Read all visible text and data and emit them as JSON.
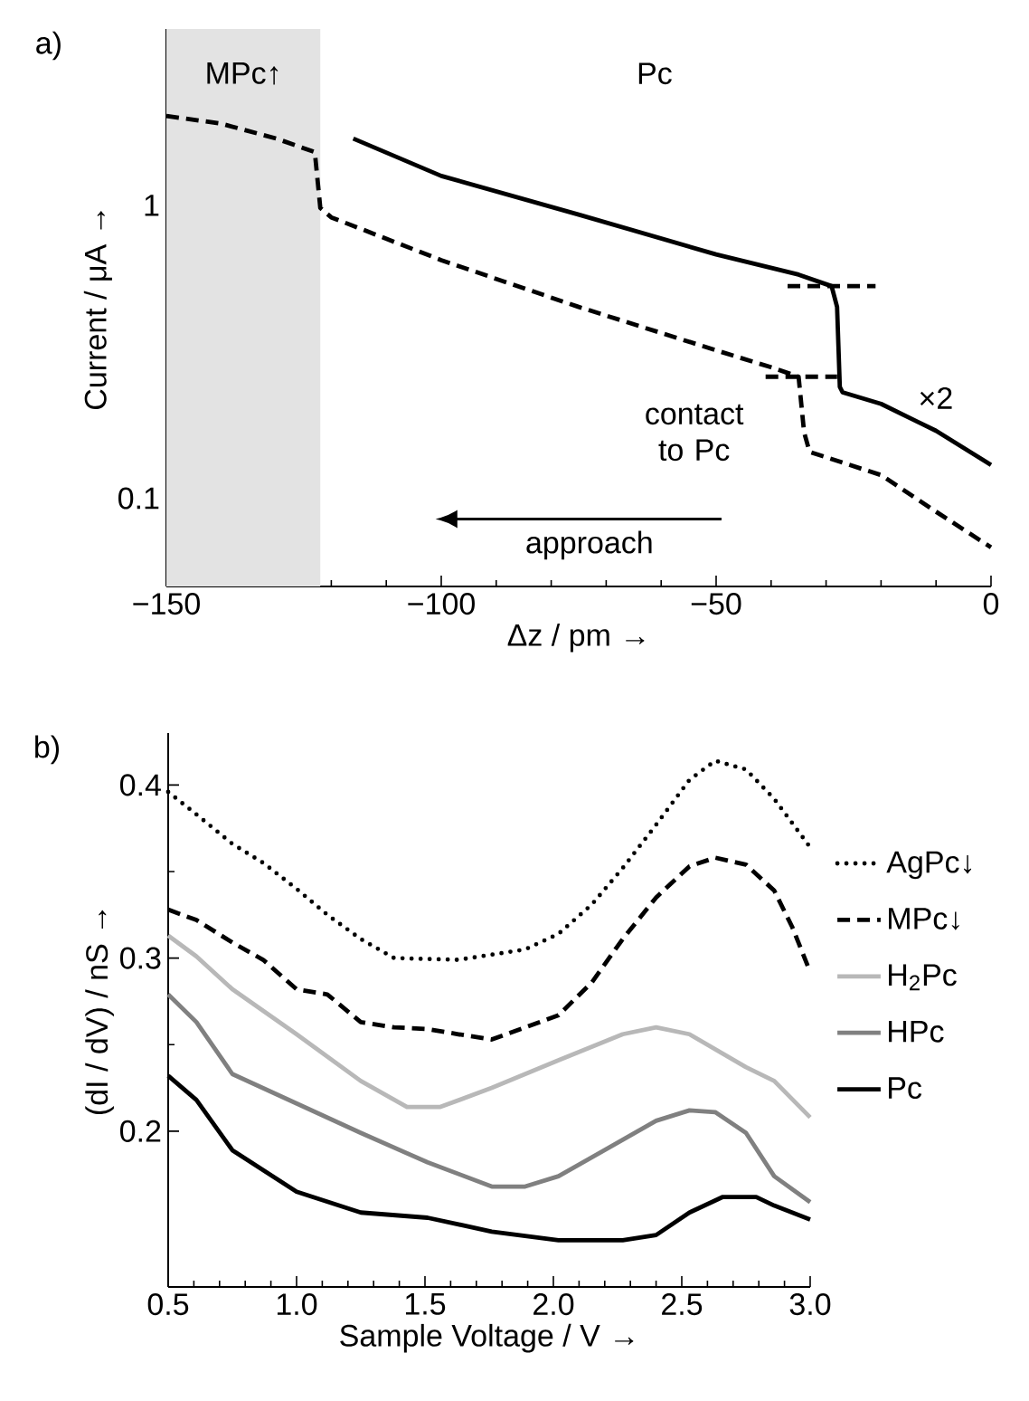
{
  "chart_data": [
    {
      "type": "line",
      "title": "a)",
      "xlabel": "Δz / pm →",
      "ylabel": "Current / μA →",
      "log": "y",
      "xlim": [
        -150,
        0
      ],
      "ylim": [
        0.05,
        4
      ],
      "xticks": [
        {
          "value": -150,
          "label": "−150"
        },
        {
          "value": -100,
          "label": "−100"
        },
        {
          "value": -50,
          "label": "−50"
        },
        0
      ],
      "yticks": [
        0.1,
        1
      ],
      "bands": [
        {
          "axis": "x",
          "from": -150,
          "to": -122,
          "label": "MPc↑",
          "color": "#e3e3e3"
        }
      ],
      "series": [
        {
          "color": "#000000",
          "line_style": "dashed",
          "x": [
            -150,
            -140,
            -130,
            -123,
            -122,
            -120,
            -100,
            -75,
            -50,
            -40,
            -35,
            -34,
            -33,
            -20,
            -10,
            0
          ],
          "values": [
            2.02,
            1.9,
            1.69,
            1.52,
            0.98,
            0.91,
            0.65,
            0.45,
            0.32,
            0.28,
            0.26,
            0.168,
            0.144,
            0.12,
            0.09,
            0.068
          ]
        },
        {
          "color": "#000000",
          "line_style": "solid",
          "x": [
            -116,
            -100,
            -75,
            -50,
            -35,
            -29,
            -28,
            -27.5,
            -27,
            -20,
            -10,
            0
          ],
          "values": [
            1.69,
            1.26,
            0.93,
            0.68,
            0.58,
            0.53,
            0.45,
            0.24,
            0.23,
            0.21,
            0.17,
            0.13
          ]
        },
        {
          "color": "#000000",
          "line_style": "dashed",
          "x": [
            -37,
            -21
          ],
          "values": [
            0.53,
            0.53
          ]
        },
        {
          "color": "#000000",
          "line_style": "dashed",
          "x": [
            -41,
            -28
          ],
          "values": [
            0.26,
            0.26
          ]
        }
      ],
      "annotations": [
        "Pc",
        "approach",
        "contact to Pc",
        "×2"
      ]
    },
    {
      "type": "line",
      "title": "b)",
      "xlabel": "Sample Voltage / V →",
      "ylabel": "(dI / dV) / nS →",
      "xlim": [
        0.5,
        3.0
      ],
      "ylim": [
        0.11,
        0.43
      ],
      "xticks": [
        0.5,
        {
          "value": 1,
          "label": "1.0"
        },
        1.5,
        {
          "value": 2,
          "label": "2.0"
        },
        2.5,
        {
          "value": 3,
          "label": "3.0"
        }
      ],
      "yticks": [
        0.2,
        0.3,
        0.4
      ],
      "legend": "right",
      "series": [
        {
          "name": "AgPc↓",
          "color": "#000000",
          "line_style": "dotted",
          "x": [
            0.5,
            0.61,
            0.75,
            0.87,
            1.0,
            1.12,
            1.25,
            1.38,
            1.63,
            1.89,
            2.02,
            2.15,
            2.27,
            2.4,
            2.53,
            2.63,
            2.75,
            2.86,
            3.0
          ],
          "values": [
            0.396,
            0.383,
            0.366,
            0.355,
            0.34,
            0.325,
            0.311,
            0.3,
            0.299,
            0.305,
            0.314,
            0.331,
            0.352,
            0.377,
            0.403,
            0.414,
            0.409,
            0.392,
            0.364
          ]
        },
        {
          "name": "MPc↓",
          "color": "#000000",
          "line_style": "dashed",
          "x": [
            0.5,
            0.61,
            0.75,
            0.87,
            1.0,
            1.12,
            1.25,
            1.38,
            1.51,
            1.63,
            1.76,
            1.89,
            2.02,
            2.15,
            2.27,
            2.4,
            2.53,
            2.63,
            2.75,
            2.86,
            2.93,
            3.0
          ],
          "values": [
            0.328,
            0.322,
            0.309,
            0.299,
            0.282,
            0.279,
            0.263,
            0.26,
            0.259,
            0.256,
            0.253,
            0.26,
            0.267,
            0.286,
            0.311,
            0.335,
            0.353,
            0.358,
            0.354,
            0.339,
            0.318,
            0.292
          ]
        },
        {
          "name": "H$_{2}$Pc",
          "color": "#b8b8b8",
          "line_style": "solid",
          "x": [
            0.5,
            0.61,
            0.75,
            1.0,
            1.25,
            1.43,
            1.56,
            1.76,
            2.02,
            2.27,
            2.4,
            2.53,
            2.75,
            2.86,
            3.0
          ],
          "values": [
            0.313,
            0.301,
            0.282,
            0.256,
            0.229,
            0.214,
            0.214,
            0.225,
            0.241,
            0.256,
            0.26,
            0.256,
            0.237,
            0.229,
            0.208
          ]
        },
        {
          "name": "HPc",
          "color": "#808080",
          "line_style": "solid",
          "x": [
            0.5,
            0.61,
            0.75,
            1.0,
            1.25,
            1.51,
            1.76,
            1.89,
            2.02,
            2.27,
            2.4,
            2.53,
            2.63,
            2.75,
            2.86,
            3.0
          ],
          "values": [
            0.279,
            0.263,
            0.233,
            0.216,
            0.199,
            0.182,
            0.168,
            0.168,
            0.174,
            0.195,
            0.206,
            0.212,
            0.211,
            0.199,
            0.174,
            0.159
          ]
        },
        {
          "name": "Pc",
          "color": "#000000",
          "line_style": "solid",
          "x": [
            0.5,
            0.61,
            0.75,
            1.0,
            1.25,
            1.51,
            1.76,
            2.02,
            2.27,
            2.4,
            2.53,
            2.66,
            2.79,
            2.86,
            3.0
          ],
          "values": [
            0.232,
            0.218,
            0.189,
            0.165,
            0.153,
            0.15,
            0.142,
            0.137,
            0.137,
            0.14,
            0.153,
            0.162,
            0.162,
            0.157,
            0.149
          ]
        }
      ]
    }
  ]
}
